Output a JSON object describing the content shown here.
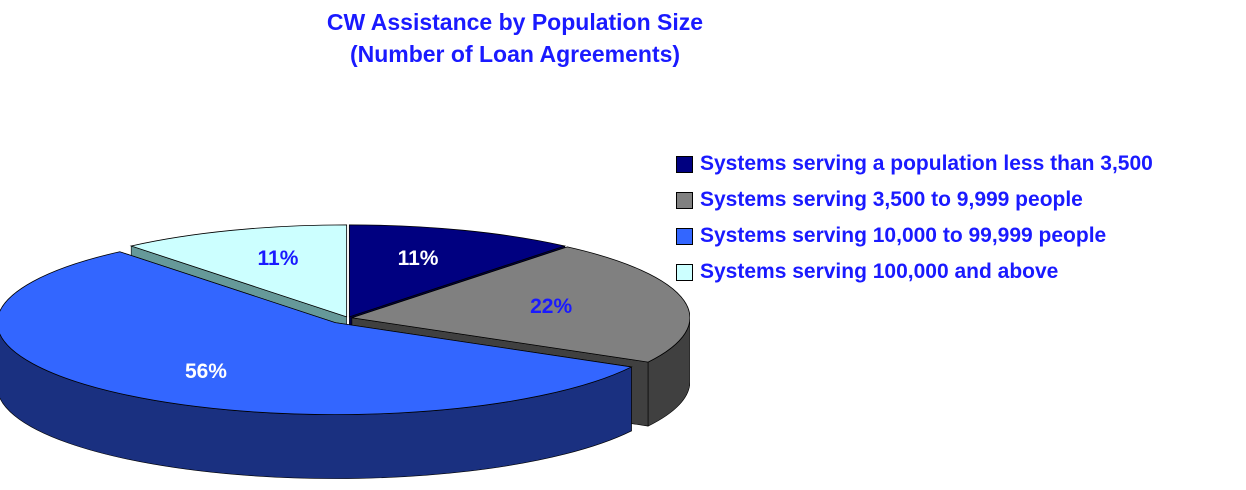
{
  "chart_data": {
    "type": "pie",
    "title": "CW Assistance by Population Size",
    "subtitle": "(Number of Loan Agreements)",
    "legend_position": "right",
    "three_d": true,
    "slices": [
      {
        "label": "Systems serving a population less than 3,500",
        "value": 11,
        "display": "11%",
        "color": "#000080",
        "side_color": "#00004a",
        "exploded": false
      },
      {
        "label": "Systems serving 3,500 to 9,999 people",
        "value": 22,
        "display": "22%",
        "color": "#808080",
        "side_color": "#404040",
        "exploded": false
      },
      {
        "label": "Systems serving 10,000 to 99,999 people",
        "value": 56,
        "display": "56%",
        "color": "#3366ff",
        "side_color": "#1a3080",
        "exploded": true
      },
      {
        "label": "Systems serving 100,000 and above",
        "value": 11,
        "display": "11%",
        "color": "#ccffff",
        "side_color": "#669999",
        "exploded": false
      }
    ],
    "label_colors": [
      "#ffffff",
      "#1a1aff",
      "#ffffff",
      "#1a1aff"
    ]
  }
}
